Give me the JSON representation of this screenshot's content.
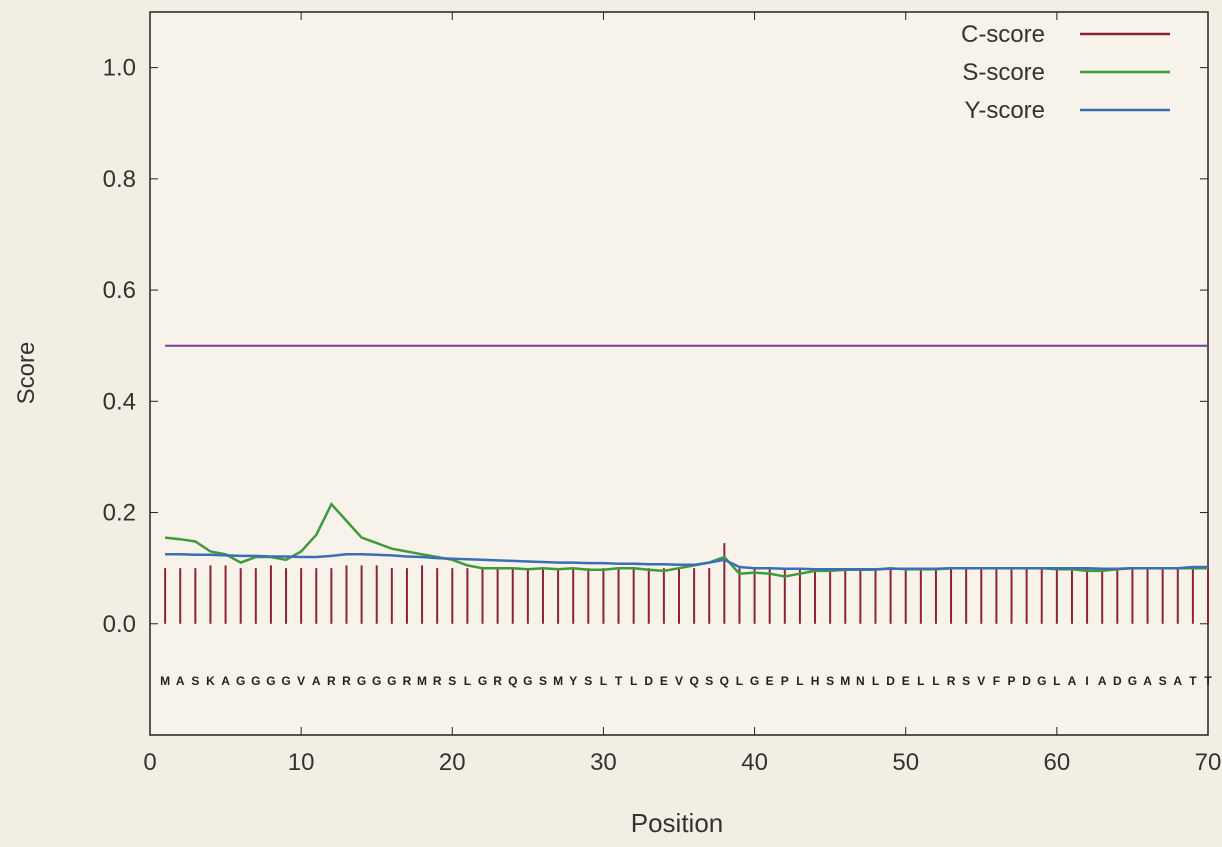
{
  "chart_data": {
    "type": "line",
    "x_label": "Position",
    "y_label": "Score",
    "x": [
      1,
      2,
      3,
      4,
      5,
      6,
      7,
      8,
      9,
      10,
      11,
      12,
      13,
      14,
      15,
      16,
      17,
      18,
      19,
      20,
      21,
      22,
      23,
      24,
      25,
      26,
      27,
      28,
      29,
      30,
      31,
      32,
      33,
      34,
      35,
      36,
      37,
      38,
      39,
      40,
      41,
      42,
      43,
      44,
      45,
      46,
      47,
      48,
      49,
      50,
      51,
      52,
      53,
      54,
      55,
      56,
      57,
      58,
      59,
      60,
      61,
      62,
      63,
      64,
      65,
      66,
      67,
      68,
      69,
      70
    ],
    "sequence": [
      "M",
      "A",
      "S",
      "K",
      "A",
      "G",
      "G",
      "G",
      "G",
      "V",
      "A",
      "R",
      "R",
      "G",
      "G",
      "G",
      "R",
      "M",
      "R",
      "S",
      "L",
      "G",
      "R",
      "Q",
      "G",
      "S",
      "M",
      "Y",
      "S",
      "L",
      "T",
      "L",
      "D",
      "E",
      "V",
      "Q",
      "S",
      "Q",
      "L",
      "G",
      "E",
      "P",
      "L",
      "H",
      "S",
      "M",
      "N",
      "L",
      "D",
      "E",
      "L",
      "L",
      "R",
      "S",
      "V",
      "F",
      "P",
      "D",
      "G",
      "L",
      "A",
      "I",
      "A",
      "D",
      "G",
      "A",
      "S",
      "A",
      "T",
      "T"
    ],
    "series": [
      {
        "name": "C-score",
        "color": "#8e2433",
        "style": "bars",
        "values": [
          0.1,
          0.1,
          0.1,
          0.105,
          0.105,
          0.1,
          0.1,
          0.105,
          0.1,
          0.1,
          0.1,
          0.1,
          0.105,
          0.105,
          0.105,
          0.1,
          0.1,
          0.105,
          0.1,
          0.1,
          0.1,
          0.1,
          0.1,
          0.1,
          0.1,
          0.1,
          0.1,
          0.1,
          0.1,
          0.1,
          0.1,
          0.1,
          0.1,
          0.1,
          0.1,
          0.1,
          0.1,
          0.145,
          0.1,
          0.1,
          0.1,
          0.1,
          0.1,
          0.1,
          0.1,
          0.1,
          0.1,
          0.1,
          0.1,
          0.1,
          0.1,
          0.1,
          0.1,
          0.1,
          0.1,
          0.1,
          0.1,
          0.1,
          0.1,
          0.1,
          0.1,
          0.1,
          0.1,
          0.1,
          0.1,
          0.1,
          0.1,
          0.1,
          0.1,
          0.1
        ]
      },
      {
        "name": "S-score",
        "color": "#3f9a3c",
        "style": "line",
        "values": [
          0.155,
          0.152,
          0.148,
          0.13,
          0.125,
          0.11,
          0.12,
          0.12,
          0.115,
          0.13,
          0.16,
          0.215,
          0.185,
          0.155,
          0.145,
          0.135,
          0.13,
          0.125,
          0.12,
          0.115,
          0.105,
          0.1,
          0.1,
          0.1,
          0.098,
          0.1,
          0.098,
          0.1,
          0.097,
          0.097,
          0.1,
          0.1,
          0.097,
          0.095,
          0.1,
          0.105,
          0.11,
          0.12,
          0.09,
          0.092,
          0.09,
          0.085,
          0.09,
          0.095,
          0.095,
          0.097,
          0.097,
          0.097,
          0.1,
          0.098,
          0.098,
          0.098,
          0.1,
          0.1,
          0.1,
          0.1,
          0.1,
          0.1,
          0.1,
          0.098,
          0.098,
          0.095,
          0.095,
          0.098,
          0.1,
          0.1,
          0.1,
          0.1,
          0.1,
          0.1
        ]
      },
      {
        "name": "Y-score",
        "color": "#3a6fb5",
        "style": "line",
        "values": [
          0.125,
          0.125,
          0.124,
          0.124,
          0.123,
          0.122,
          0.122,
          0.121,
          0.121,
          0.12,
          0.12,
          0.122,
          0.125,
          0.125,
          0.124,
          0.123,
          0.121,
          0.12,
          0.118,
          0.117,
          0.116,
          0.115,
          0.114,
          0.113,
          0.112,
          0.111,
          0.11,
          0.11,
          0.109,
          0.109,
          0.108,
          0.108,
          0.107,
          0.107,
          0.106,
          0.106,
          0.11,
          0.115,
          0.102,
          0.1,
          0.1,
          0.099,
          0.099,
          0.098,
          0.098,
          0.098,
          0.098,
          0.098,
          0.099,
          0.099,
          0.099,
          0.099,
          0.1,
          0.1,
          0.1,
          0.1,
          0.1,
          0.1,
          0.1,
          0.1,
          0.1,
          0.1,
          0.099,
          0.099,
          0.1,
          0.1,
          0.1,
          0.1,
          0.102,
          0.102
        ]
      }
    ],
    "threshold": 0.5,
    "threshold_color": "#7a3a9e",
    "xlim": [
      0,
      70
    ],
    "xticks": [
      0,
      10,
      20,
      30,
      40,
      50,
      60,
      70
    ],
    "ylim": [
      -0.2,
      1.1
    ],
    "yticks": [
      {
        "value": 0,
        "label": "0.0"
      },
      0.2,
      0.4,
      0.6,
      0.8,
      {
        "value": 1,
        "label": "1.0"
      }
    ],
    "legend": "upper right"
  }
}
